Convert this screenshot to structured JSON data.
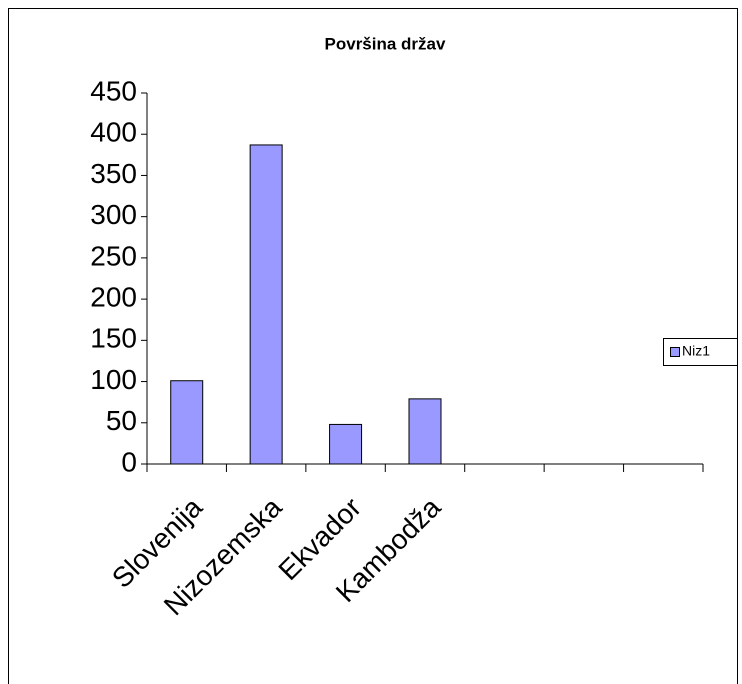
{
  "chart_data": {
    "type": "bar",
    "title": "Površina držav",
    "categories": [
      "Slovenija",
      "Nizozemska",
      "Ekvador",
      "Kambodža",
      null,
      null,
      null
    ],
    "series": [
      {
        "name": "Niz1",
        "color": "#9999ff",
        "values": [
          101,
          387,
          48,
          79,
          null,
          null,
          null
        ]
      }
    ],
    "ylim": [
      0,
      450
    ],
    "yticks": [
      0,
      50,
      100,
      150,
      200,
      250,
      300,
      350,
      400,
      450
    ],
    "legend": "right"
  }
}
